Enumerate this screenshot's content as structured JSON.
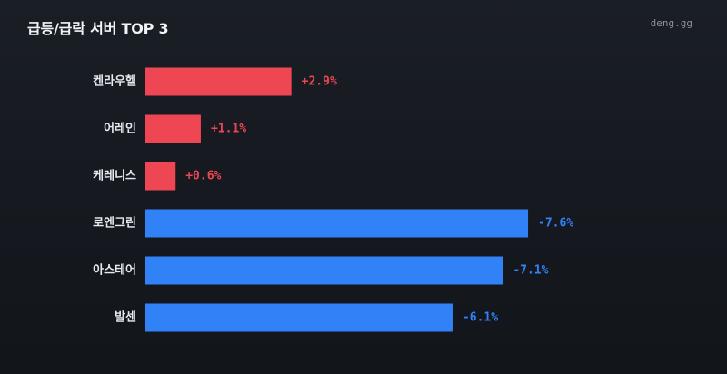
{
  "header": {
    "title": "급등/급락 서버 TOP 3",
    "brand": "deng.gg"
  },
  "colors": {
    "up": "#ef4654",
    "down": "#3182f6",
    "background": "#15181e"
  },
  "chart_data": {
    "type": "bar",
    "orientation": "horizontal",
    "title": "급등/급락 서버 TOP 3",
    "xlabel": "",
    "ylabel": "",
    "grid": false,
    "categories": [
      "켄라우헬",
      "어레인",
      "케레니스",
      "로엔그린",
      "아스테어",
      "발센"
    ],
    "values": [
      2.9,
      1.1,
      0.6,
      -7.6,
      -7.1,
      -6.1
    ],
    "labels": [
      "+2.9%",
      "+1.1%",
      "+0.6%",
      "-7.6%",
      "-7.1%",
      "-6.1%"
    ],
    "unit": "%"
  }
}
